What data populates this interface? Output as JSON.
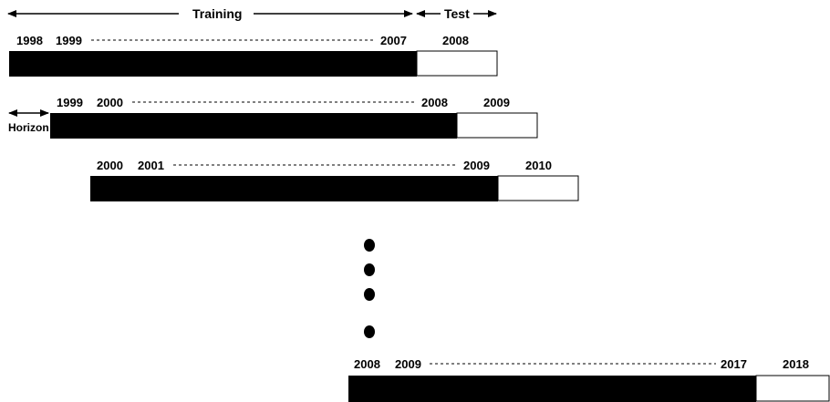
{
  "header": {
    "training_label": "Training",
    "test_label": "Test"
  },
  "horizon_label": "Horizon",
  "windows": [
    {
      "start_year": "1998",
      "second_year": "1999",
      "train_end_year": "2007",
      "test_year": "2008"
    },
    {
      "start_year": "1999",
      "second_year": "2000",
      "train_end_year": "2008",
      "test_year": "2009"
    },
    {
      "start_year": "2000",
      "second_year": "2001",
      "train_end_year": "2009",
      "test_year": "2010"
    },
    {
      "start_year": "2008",
      "second_year": "2009",
      "train_end_year": "2017",
      "test_year": "2018"
    }
  ],
  "colors": {
    "training_fill": "#000000",
    "test_fill": "#ffffff",
    "stroke": "#000000"
  }
}
